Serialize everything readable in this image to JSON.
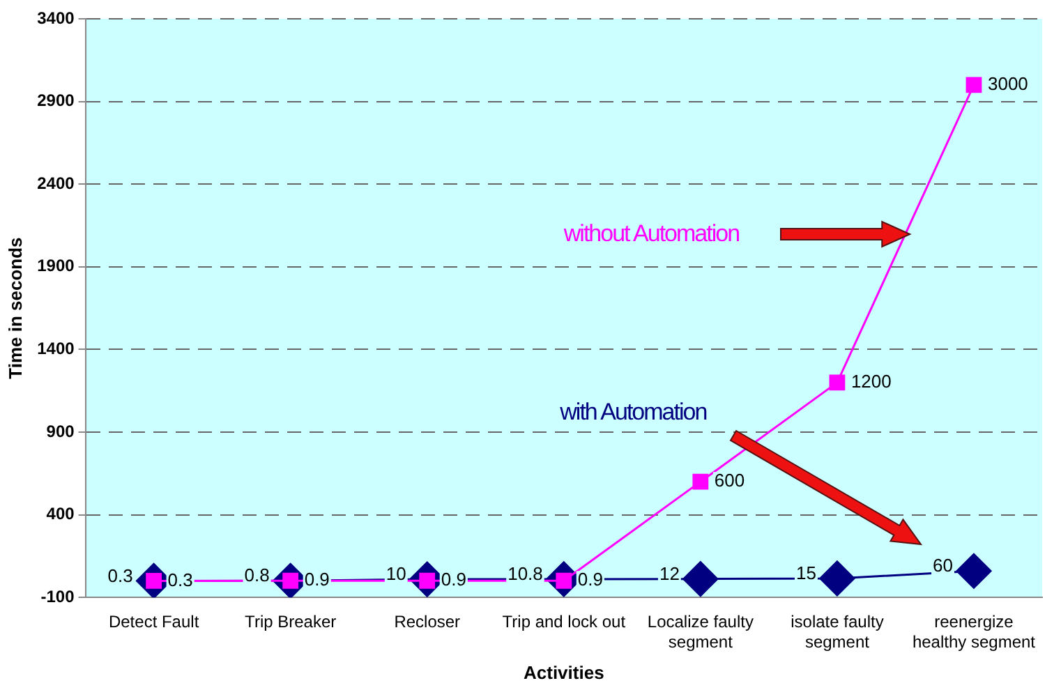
{
  "chart_data": {
    "type": "line",
    "xlabel": "Activities",
    "ylabel": "Time in seconds",
    "categories": [
      "Detect Fault",
      "Trip Breaker",
      "Recloser",
      "Trip and lock out",
      "Localize faulty\nsegment",
      "isolate faulty\nsegment",
      "reenergize\nhealthy segment"
    ],
    "series": [
      {
        "name": "without Automation",
        "color": "#ff00ff",
        "marker": "square",
        "values": [
          0.3,
          0.9,
          0.9,
          0.9,
          600,
          1200,
          3000
        ],
        "value_labels": [
          "0.3",
          "0.9",
          "0.9",
          "0.9",
          "600",
          "1200",
          "3000"
        ]
      },
      {
        "name": "with Automation",
        "color": "#000080",
        "marker": "diamond",
        "values": [
          0.3,
          0.8,
          10,
          10.8,
          12,
          15,
          60
        ],
        "value_labels": [
          "0.3",
          "0.8",
          "10",
          "10.8",
          "12",
          "15",
          "60"
        ]
      }
    ],
    "ylim": [
      -100,
      3400
    ],
    "yticks": [
      -100,
      400,
      900,
      1400,
      1900,
      2400,
      2900,
      3400
    ],
    "grid": "y",
    "legend": false
  }
}
